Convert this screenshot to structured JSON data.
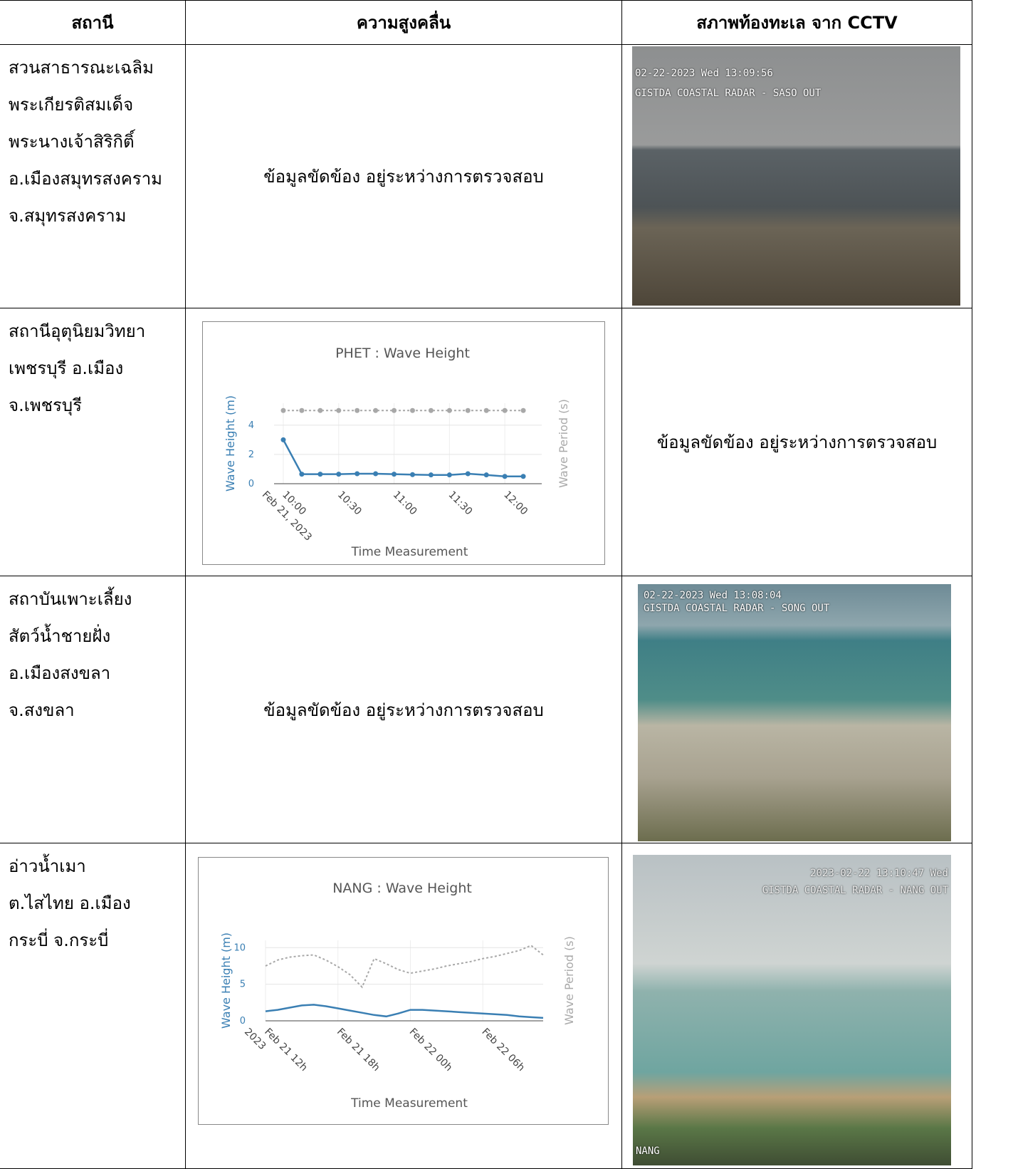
{
  "table": {
    "header": [
      "สถานี",
      "ความสูงคลื่น",
      "สภาพท้องทะเล จาก CCTV"
    ],
    "rows": [
      {
        "station": [
          "สวนสาธารณะเฉลิม",
          "พระเกียรติสมเด็จ",
          "พระนางเจ้าสิริกิติ์",
          "อ.เมืองสมุทรสงคราม",
          "จ.สมุทรสงคราม"
        ],
        "wave_status": "ข้อมูลขัดข้อง อยู่ระหว่างการตรวจสอบ",
        "cctv_overlay": [
          "02-22-2023 Wed 13:09:56",
          "GISTDA COASTAL RADAR - SASO OUT"
        ]
      },
      {
        "station": [
          "สถานีอุตุนิยมวิทยา",
          "เพชรบุรี อ.เมือง",
          "จ.เพชรบุรี"
        ],
        "chart": 0,
        "cctv_status": "ข้อมูลขัดข้อง อยู่ระหว่างการตรวจสอบ"
      },
      {
        "station": [
          "สถาบันเพาะเลี้ยง",
          "สัตว์น้ำชายฝั่ง",
          "อ.เมืองสงขลา",
          "จ.สงขลา"
        ],
        "wave_status": "ข้อมูลขัดข้อง อยู่ระหว่างการตรวจสอบ",
        "cctv_overlay": [
          "02-22-2023 Wed 13:08:04",
          "GISTDA COASTAL RADAR - SONG OUT"
        ]
      },
      {
        "station": [
          "อ่าวน้ำเมา",
          "ต.ไสไทย  อ.เมือง",
          "กระบี่ จ.กระบี่"
        ],
        "chart": 1,
        "cctv_overlay": [
          "2023-02-22 13:10:47 Wed",
          "GISTDA COASTAL RADAR - NANG OUT",
          "NANG"
        ]
      }
    ]
  },
  "chart_data": [
    {
      "type": "line",
      "title": "PHET : Wave Height",
      "x_label": "Time Measurement",
      "y_label": "Wave Height (m)",
      "y2_label": "Wave Period (s)",
      "markers": true,
      "grid": true,
      "x": [
        "2023-02-21 10:00",
        "2023-02-21 10:10",
        "2023-02-21 10:20",
        "2023-02-21 10:30",
        "2023-02-21 10:40",
        "2023-02-21 10:50",
        "2023-02-21 11:00",
        "2023-02-21 11:10",
        "2023-02-21 11:20",
        "2023-02-21 11:30",
        "2023-02-21 11:40",
        "2023-02-21 11:50",
        "2023-02-21 12:00",
        "2023-02-21 12:10"
      ],
      "xlim": [
        "2023-02-21 09:55",
        "2023-02-21 12:20"
      ],
      "xticks": [
        {
          "value": "2023-02-21 10:00",
          "label": [
            "10:00",
            "Feb 21, 2023"
          ]
        },
        {
          "value": "2023-02-21 10:30",
          "label": [
            "10:30"
          ]
        },
        {
          "value": "2023-02-21 11:00",
          "label": [
            "11:00"
          ]
        },
        {
          "value": "2023-02-21 11:30",
          "label": [
            "11:30"
          ]
        },
        {
          "value": "2023-02-21 12:00",
          "label": [
            "12:00"
          ]
        }
      ],
      "ylim": [
        0,
        5.5
      ],
      "yticks": [
        0,
        2,
        4
      ],
      "y2lim": [
        0,
        5.5
      ],
      "series": [
        {
          "color": "#3a7fb3",
          "values": [
            3.0,
            0.65,
            0.65,
            0.65,
            0.68,
            0.68,
            0.65,
            0.62,
            0.6,
            0.6,
            0.68,
            0.6,
            0.5,
            0.5
          ]
        },
        {
          "color": "#a8a8a8",
          "axis": "y2",
          "dash": true,
          "values": [
            5,
            5,
            5,
            5,
            5,
            5,
            5,
            5,
            5,
            5,
            5,
            5,
            5,
            5
          ]
        }
      ]
    },
    {
      "type": "line",
      "title": "NANG : Wave Height",
      "x_label": "Time Measurement",
      "y_label": "Wave Height (m)",
      "y2_label": "Wave Period (s)",
      "markers": false,
      "grid": true,
      "x": [
        "2023-02-21 12:00",
        "2023-02-21 13:00",
        "2023-02-21 14:00",
        "2023-02-21 15:00",
        "2023-02-21 16:00",
        "2023-02-21 17:00",
        "2023-02-21 18:00",
        "2023-02-21 19:00",
        "2023-02-21 20:00",
        "2023-02-21 21:00",
        "2023-02-21 22:00",
        "2023-02-21 23:00",
        "2023-02-22 00:00",
        "2023-02-22 01:00",
        "2023-02-22 02:00",
        "2023-02-22 03:00",
        "2023-02-22 04:00",
        "2023-02-22 05:00",
        "2023-02-22 06:00",
        "2023-02-22 07:00",
        "2023-02-22 08:00",
        "2023-02-22 09:00",
        "2023-02-22 10:00",
        "2023-02-22 11:00"
      ],
      "xlim": [
        "2023-02-21 12:00",
        "2023-02-22 11:00"
      ],
      "xticks": [
        {
          "value": "2023-02-21 12:00",
          "label": [
            "Feb 21 12h",
            "2023"
          ]
        },
        {
          "value": "2023-02-21 18:00",
          "label": [
            "Feb 21 18h"
          ]
        },
        {
          "value": "2023-02-22 00:00",
          "label": [
            "Feb 22 00h"
          ]
        },
        {
          "value": "2023-02-22 06:00",
          "label": [
            "Feb 22 06h"
          ]
        }
      ],
      "ylim": [
        0,
        11
      ],
      "yticks": [
        0,
        5,
        10
      ],
      "y2lim": [
        0,
        11
      ],
      "series": [
        {
          "color": "#3a7fb3",
          "values": [
            1.3,
            1.5,
            1.8,
            2.1,
            2.2,
            2.0,
            1.7,
            1.4,
            1.1,
            0.8,
            0.6,
            1.0,
            1.5,
            1.5,
            1.4,
            1.3,
            1.2,
            1.1,
            1.0,
            0.9,
            0.8,
            0.6,
            0.5,
            0.4
          ]
        },
        {
          "color": "#a8a8a8",
          "axis": "y2",
          "dash": true,
          "values": [
            7.5,
            8.3,
            8.7,
            8.9,
            9.0,
            8.3,
            7.4,
            6.3,
            4.6,
            8.5,
            7.8,
            7.0,
            6.5,
            6.8,
            7.1,
            7.5,
            7.8,
            8.1,
            8.5,
            8.8,
            9.2,
            9.6,
            10.3,
            9.0
          ]
        }
      ]
    }
  ]
}
